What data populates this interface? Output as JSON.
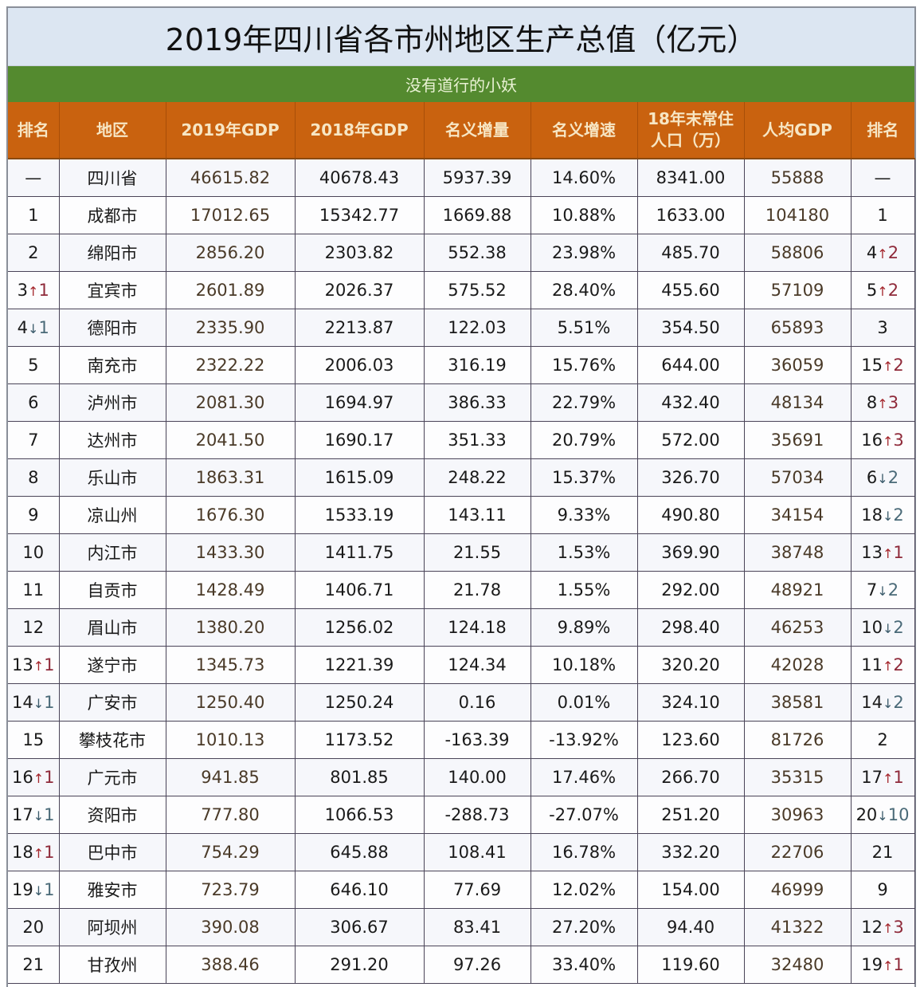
{
  "title": "2019年四川省各市州地区生产总值（亿元）",
  "subtitle": "没有道行的小妖",
  "colors": {
    "title_bg": "#dce6f2",
    "subtitle_bg": "#548a2f",
    "header_bg": "#c9620f",
    "header_text": "#f7e6c4",
    "up_arrow": "#a4262c",
    "down_arrow": "#3a5a6a"
  },
  "headers": {
    "rank": "排名",
    "region": "地区",
    "gdp2019": "2019年GDP",
    "gdp2018": "2018年GDP",
    "nominal_increase": "名义增量",
    "nominal_growth": "名义增速",
    "population_line1": "18年末常住",
    "population_line2": "人口（万）",
    "per_capita_gdp": "人均GDP",
    "per_capita_rank": "排名"
  },
  "rows": [
    {
      "rank": "—",
      "rank_dir": "",
      "rank_delta": "",
      "region": "四川省",
      "gdp2019": "46615.82",
      "gdp2018": "40678.43",
      "increase": "5937.39",
      "growth": "14.60%",
      "population": "8341.00",
      "per_capita": "55888",
      "pc_rank": "—",
      "pc_dir": "",
      "pc_delta": ""
    },
    {
      "rank": "1",
      "rank_dir": "",
      "rank_delta": "",
      "region": "成都市",
      "gdp2019": "17012.65",
      "gdp2018": "15342.77",
      "increase": "1669.88",
      "growth": "10.88%",
      "population": "1633.00",
      "per_capita": "104180",
      "pc_rank": "1",
      "pc_dir": "",
      "pc_delta": ""
    },
    {
      "rank": "2",
      "rank_dir": "",
      "rank_delta": "",
      "region": "绵阳市",
      "gdp2019": "2856.20",
      "gdp2018": "2303.82",
      "increase": "552.38",
      "growth": "23.98%",
      "population": "485.70",
      "per_capita": "58806",
      "pc_rank": "4",
      "pc_dir": "↑",
      "pc_delta": "2"
    },
    {
      "rank": "3",
      "rank_dir": "↑",
      "rank_delta": "1",
      "region": "宜宾市",
      "gdp2019": "2601.89",
      "gdp2018": "2026.37",
      "increase": "575.52",
      "growth": "28.40%",
      "population": "455.60",
      "per_capita": "57109",
      "pc_rank": "5",
      "pc_dir": "↑",
      "pc_delta": "2"
    },
    {
      "rank": "4",
      "rank_dir": "↓",
      "rank_delta": "1",
      "region": "德阳市",
      "gdp2019": "2335.90",
      "gdp2018": "2213.87",
      "increase": "122.03",
      "growth": "5.51%",
      "population": "354.50",
      "per_capita": "65893",
      "pc_rank": "3",
      "pc_dir": "",
      "pc_delta": ""
    },
    {
      "rank": "5",
      "rank_dir": "",
      "rank_delta": "",
      "region": "南充市",
      "gdp2019": "2322.22",
      "gdp2018": "2006.03",
      "increase": "316.19",
      "growth": "15.76%",
      "population": "644.00",
      "per_capita": "36059",
      "pc_rank": "15",
      "pc_dir": "↑",
      "pc_delta": "2"
    },
    {
      "rank": "6",
      "rank_dir": "",
      "rank_delta": "",
      "region": "泸州市",
      "gdp2019": "2081.30",
      "gdp2018": "1694.97",
      "increase": "386.33",
      "growth": "22.79%",
      "population": "432.40",
      "per_capita": "48134",
      "pc_rank": "8",
      "pc_dir": "↑",
      "pc_delta": "3"
    },
    {
      "rank": "7",
      "rank_dir": "",
      "rank_delta": "",
      "region": "达州市",
      "gdp2019": "2041.50",
      "gdp2018": "1690.17",
      "increase": "351.33",
      "growth": "20.79%",
      "population": "572.00",
      "per_capita": "35691",
      "pc_rank": "16",
      "pc_dir": "↑",
      "pc_delta": "3"
    },
    {
      "rank": "8",
      "rank_dir": "",
      "rank_delta": "",
      "region": "乐山市",
      "gdp2019": "1863.31",
      "gdp2018": "1615.09",
      "increase": "248.22",
      "growth": "15.37%",
      "population": "326.70",
      "per_capita": "57034",
      "pc_rank": "6",
      "pc_dir": "↓",
      "pc_delta": "2"
    },
    {
      "rank": "9",
      "rank_dir": "",
      "rank_delta": "",
      "region": "凉山州",
      "gdp2019": "1676.30",
      "gdp2018": "1533.19",
      "increase": "143.11",
      "growth": "9.33%",
      "population": "490.80",
      "per_capita": "34154",
      "pc_rank": "18",
      "pc_dir": "↓",
      "pc_delta": "2"
    },
    {
      "rank": "10",
      "rank_dir": "",
      "rank_delta": "",
      "region": "内江市",
      "gdp2019": "1433.30",
      "gdp2018": "1411.75",
      "increase": "21.55",
      "growth": "1.53%",
      "population": "369.90",
      "per_capita": "38748",
      "pc_rank": "13",
      "pc_dir": "↑",
      "pc_delta": "1"
    },
    {
      "rank": "11",
      "rank_dir": "",
      "rank_delta": "",
      "region": "自贡市",
      "gdp2019": "1428.49",
      "gdp2018": "1406.71",
      "increase": "21.78",
      "growth": "1.55%",
      "population": "292.00",
      "per_capita": "48921",
      "pc_rank": "7",
      "pc_dir": "↓",
      "pc_delta": "2"
    },
    {
      "rank": "12",
      "rank_dir": "",
      "rank_delta": "",
      "region": "眉山市",
      "gdp2019": "1380.20",
      "gdp2018": "1256.02",
      "increase": "124.18",
      "growth": "9.89%",
      "population": "298.40",
      "per_capita": "46253",
      "pc_rank": "10",
      "pc_dir": "↓",
      "pc_delta": "2"
    },
    {
      "rank": "13",
      "rank_dir": "↑",
      "rank_delta": "1",
      "region": "遂宁市",
      "gdp2019": "1345.73",
      "gdp2018": "1221.39",
      "increase": "124.34",
      "growth": "10.18%",
      "population": "320.20",
      "per_capita": "42028",
      "pc_rank": "11",
      "pc_dir": "↑",
      "pc_delta": "2"
    },
    {
      "rank": "14",
      "rank_dir": "↓",
      "rank_delta": "1",
      "region": "广安市",
      "gdp2019": "1250.40",
      "gdp2018": "1250.24",
      "increase": "0.16",
      "growth": "0.01%",
      "population": "324.10",
      "per_capita": "38581",
      "pc_rank": "14",
      "pc_dir": "↓",
      "pc_delta": "2"
    },
    {
      "rank": "15",
      "rank_dir": "",
      "rank_delta": "",
      "region": "攀枝花市",
      "gdp2019": "1010.13",
      "gdp2018": "1173.52",
      "increase": "-163.39",
      "growth": "-13.92%",
      "population": "123.60",
      "per_capita": "81726",
      "pc_rank": "2",
      "pc_dir": "",
      "pc_delta": ""
    },
    {
      "rank": "16",
      "rank_dir": "↑",
      "rank_delta": "1",
      "region": "广元市",
      "gdp2019": "941.85",
      "gdp2018": "801.85",
      "increase": "140.00",
      "growth": "17.46%",
      "population": "266.70",
      "per_capita": "35315",
      "pc_rank": "17",
      "pc_dir": "↑",
      "pc_delta": "1"
    },
    {
      "rank": "17",
      "rank_dir": "↓",
      "rank_delta": "1",
      "region": "资阳市",
      "gdp2019": "777.80",
      "gdp2018": "1066.53",
      "increase": "-288.73",
      "growth": "-27.07%",
      "population": "251.20",
      "per_capita": "30963",
      "pc_rank": "20",
      "pc_dir": "↓",
      "pc_delta": "10"
    },
    {
      "rank": "18",
      "rank_dir": "↑",
      "rank_delta": "1",
      "region": "巴中市",
      "gdp2019": "754.29",
      "gdp2018": "645.88",
      "increase": "108.41",
      "growth": "16.78%",
      "population": "332.20",
      "per_capita": "22706",
      "pc_rank": "21",
      "pc_dir": "",
      "pc_delta": ""
    },
    {
      "rank": "19",
      "rank_dir": "↓",
      "rank_delta": "1",
      "region": "雅安市",
      "gdp2019": "723.79",
      "gdp2018": "646.10",
      "increase": "77.69",
      "growth": "12.02%",
      "population": "154.00",
      "per_capita": "46999",
      "pc_rank": "9",
      "pc_dir": "",
      "pc_delta": ""
    },
    {
      "rank": "20",
      "rank_dir": "",
      "rank_delta": "",
      "region": "阿坝州",
      "gdp2019": "390.08",
      "gdp2018": "306.67",
      "increase": "83.41",
      "growth": "27.20%",
      "population": "94.40",
      "per_capita": "41322",
      "pc_rank": "12",
      "pc_dir": "↑",
      "pc_delta": "3"
    },
    {
      "rank": "21",
      "rank_dir": "",
      "rank_delta": "",
      "region": "甘孜州",
      "gdp2019": "388.46",
      "gdp2018": "291.20",
      "increase": "97.26",
      "growth": "33.40%",
      "population": "119.60",
      "per_capita": "32480",
      "pc_rank": "19",
      "pc_dir": "↑",
      "pc_delta": "1"
    }
  ]
}
